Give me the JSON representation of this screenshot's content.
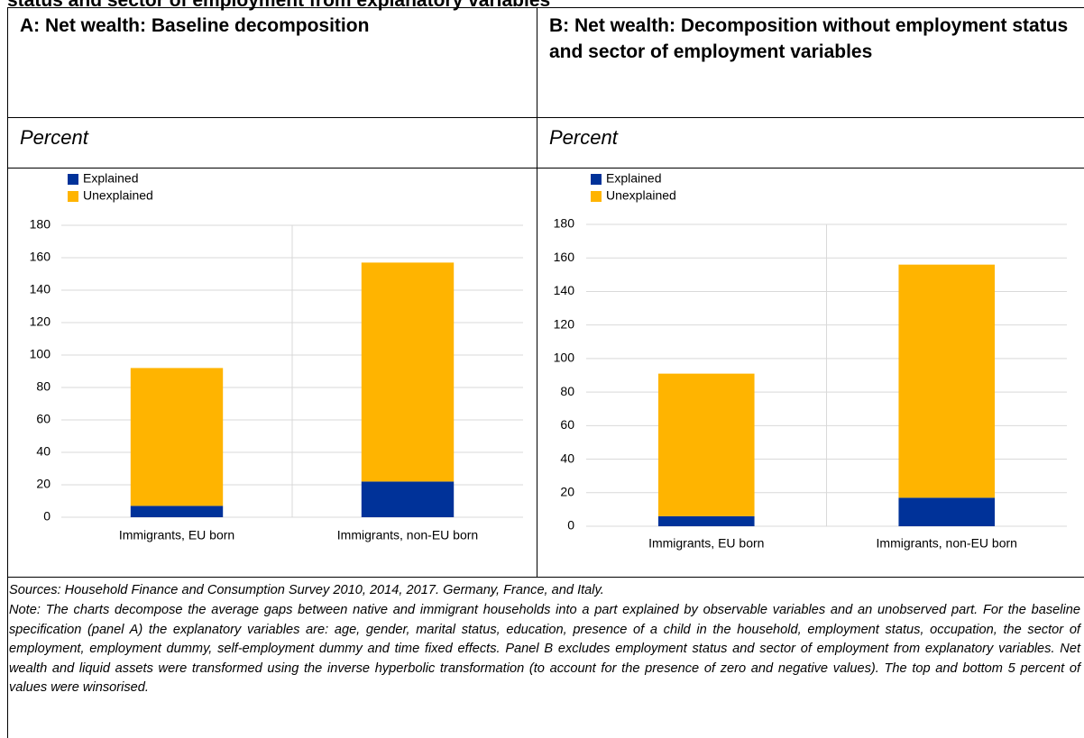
{
  "heading": "status and sector of employment from explanatory variables",
  "chart_data": [
    {
      "type": "bar",
      "stacked": true,
      "title": "A: Net wealth: Baseline decomposition",
      "subtitle": "Percent",
      "categories": [
        "Immigrants, EU born",
        "Immigrants, non-EU born"
      ],
      "series": [
        {
          "name": "Explained",
          "color": "#003299",
          "values": [
            7,
            22
          ]
        },
        {
          "name": "Unexplained",
          "color": "#ffb400",
          "values": [
            85,
            135
          ]
        }
      ],
      "ylim": [
        0,
        180
      ],
      "yticks": [
        0,
        20,
        40,
        60,
        80,
        100,
        120,
        140,
        160,
        180
      ],
      "grid": true,
      "legend": "top-left"
    },
    {
      "type": "bar",
      "stacked": true,
      "title": "B: Net wealth: Decomposition without employment status and sector of employment variables",
      "subtitle": "Percent",
      "categories": [
        "Immigrants, EU born",
        "Immigrants, non-EU born"
      ],
      "series": [
        {
          "name": "Explained",
          "color": "#003299",
          "values": [
            6,
            17
          ]
        },
        {
          "name": "Unexplained",
          "color": "#ffb400",
          "values": [
            85,
            139
          ]
        }
      ],
      "ylim": [
        0,
        180
      ],
      "yticks": [
        0,
        20,
        40,
        60,
        80,
        100,
        120,
        140,
        160,
        180
      ],
      "grid": true,
      "legend": "top-left"
    }
  ],
  "sources": "Sources: Household Finance and Consumption Survey 2010, 2014, 2017. Germany, France, and Italy.",
  "note": "Note: The charts decompose the average gaps between native and immigrant households into a part explained by observable variables and an unobserved part. For the baseline specification (panel A) the explanatory variables are: age, gender, marital status, education, presence of a child in the household, employment status, occupation, the sector of employment, employment dummy, self-employment dummy and time fixed effects. Panel B excludes employment status and sector of employment from explanatory variables. Net wealth and liquid assets were transformed using the inverse hyperbolic transformation (to account for the presence of zero and negative values). The top and bottom 5 percent of values were winsorised."
}
